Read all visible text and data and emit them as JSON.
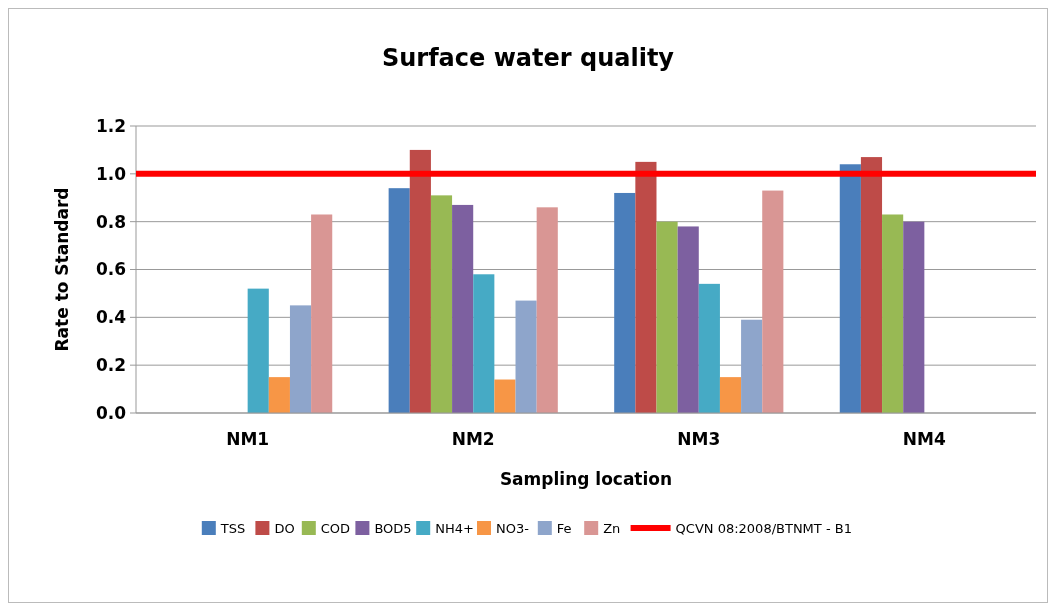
{
  "chart_data": {
    "type": "bar",
    "title": "Surface water quality",
    "xlabel": "Sampling location",
    "ylabel": "Rate to Standard",
    "categories": [
      "NM1",
      "NM2",
      "NM3",
      "NM4"
    ],
    "series": [
      {
        "name": "TSS",
        "color": "#4a7ebb",
        "values": [
          null,
          0.94,
          0.92,
          1.04
        ]
      },
      {
        "name": "DO",
        "color": "#be4b48",
        "values": [
          null,
          1.1,
          1.05,
          1.07
        ]
      },
      {
        "name": "COD",
        "color": "#98b954",
        "values": [
          null,
          0.91,
          0.8,
          0.83
        ]
      },
      {
        "name": "BOD5",
        "color": "#7d60a0",
        "values": [
          null,
          0.87,
          0.78,
          0.8
        ]
      },
      {
        "name": "NH4+",
        "color": "#46aac5",
        "values": [
          0.52,
          0.58,
          0.54,
          null
        ]
      },
      {
        "name": "NO3-",
        "color": "#f79646",
        "values": [
          0.15,
          0.14,
          0.15,
          null
        ]
      },
      {
        "name": "Fe",
        "color": "#8ea5cb",
        "values": [
          0.45,
          0.47,
          0.39,
          null
        ]
      },
      {
        "name": "Zn",
        "color": "#d99694",
        "values": [
          0.83,
          0.86,
          0.93,
          null
        ]
      }
    ],
    "ylim": [
      0,
      1.2
    ],
    "yticks": [
      {
        "value": 0,
        "label": "0.0"
      },
      {
        "value": 0.2,
        "label": "0.2"
      },
      {
        "value": 0.4,
        "label": "0.4"
      },
      {
        "value": 0.6,
        "label": "0.6"
      },
      {
        "value": 0.8,
        "label": "0.8"
      },
      {
        "value": 1,
        "label": "1.0"
      },
      {
        "value": 1.2,
        "label": "1.2"
      }
    ],
    "ref_lines": [
      {
        "axis": "y",
        "value": 1,
        "label": "QCVN 08:2008/BTNMT - B1",
        "color": "#ff0000"
      }
    ],
    "grid": "y",
    "legend": "bottom"
  }
}
